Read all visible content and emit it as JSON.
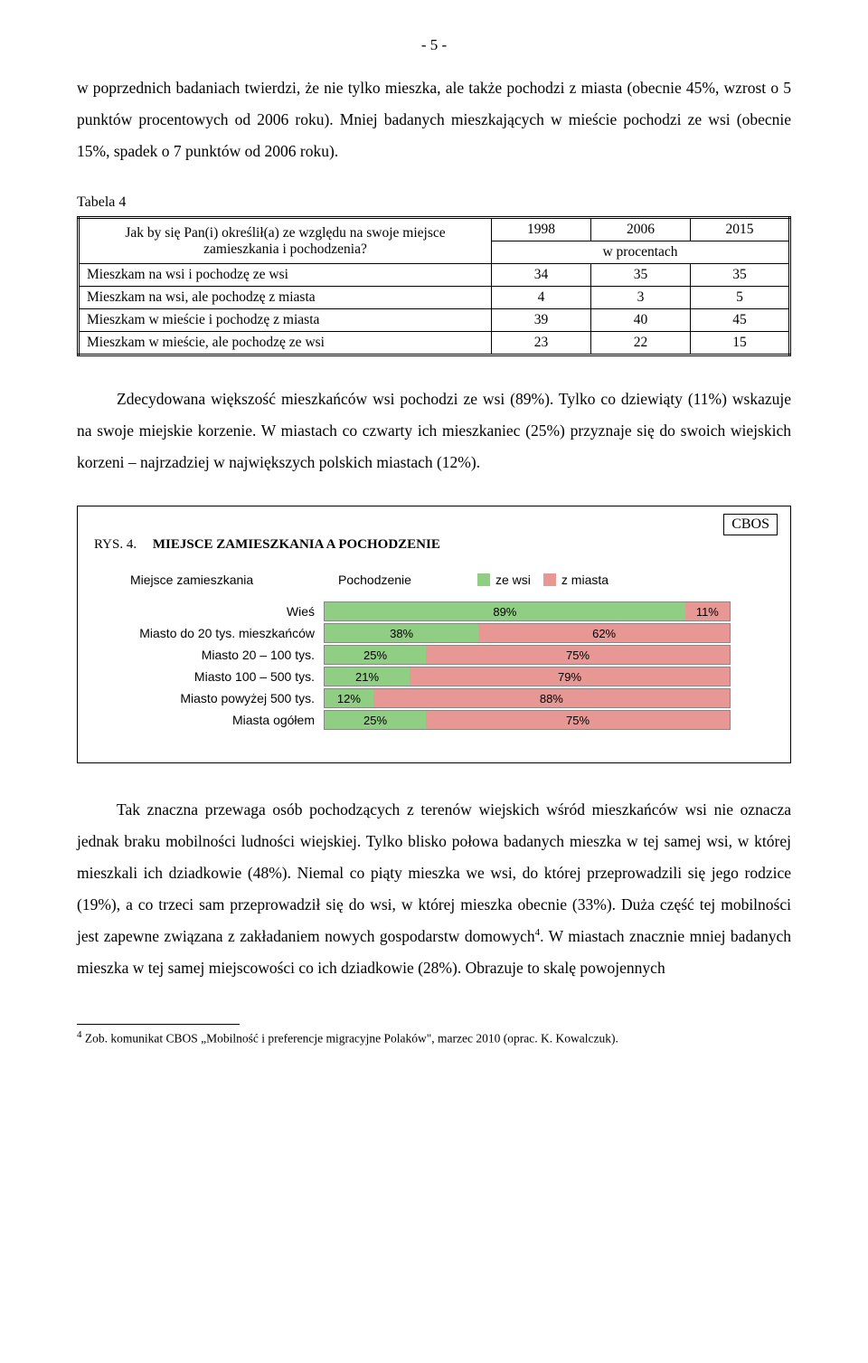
{
  "page_number": "- 5 -",
  "para1": "w poprzednich badaniach twierdzi, że nie tylko mieszka, ale także pochodzi z miasta (obecnie 45%, wzrost o 5 punktów procentowych od 2006 roku). Mniej badanych mieszkających w mieście pochodzi ze wsi (obecnie 15%, spadek o 7 punktów od 2006 roku).",
  "table_caption": "Tabela 4",
  "table": {
    "question": "Jak by się Pan(i) określił(a) ze względu na swoje miejsce zamieszkania i pochodzenia?",
    "years": [
      "1998",
      "2006",
      "2015"
    ],
    "unit": "w procentach",
    "rows": [
      {
        "label": "Mieszkam na wsi i pochodzę ze wsi",
        "v": [
          "34",
          "35",
          "35"
        ]
      },
      {
        "label": "Mieszkam na wsi, ale pochodzę z miasta",
        "v": [
          "4",
          "3",
          "5"
        ]
      },
      {
        "label": "Mieszkam w mieście i pochodzę z miasta",
        "v": [
          "39",
          "40",
          "45"
        ]
      },
      {
        "label": "Mieszkam w mieście, ale pochodzę ze wsi",
        "v": [
          "23",
          "22",
          "15"
        ]
      }
    ]
  },
  "para2": "Zdecydowana większość mieszkańców wsi pochodzi ze wsi (89%). Tylko co dziewiąty (11%) wskazuje na swoje miejskie korzenie. W miastach co czwarty ich mieszkaniec (25%) przyznaje się do swoich wiejskich korzeni – najrzadziej w największych polskich miastach (12%).",
  "chart": {
    "badge": "CBOS",
    "title_prefix": "RYS. 4.",
    "title": "MIEJSCE ZAMIESZKANIA A POCHODZENIE",
    "legend_left": "Miejsce zamieszkania",
    "legend_center": "Pochodzenie",
    "legend_green": "ze wsi",
    "legend_pink": "z miasta",
    "colors": {
      "green": "#90cf83",
      "pink": "#e89894"
    },
    "rows": [
      {
        "label": "Wieś",
        "green": 89,
        "pink": 11,
        "gl": "89%",
        "pl": "11%"
      },
      {
        "label": "Miasto do 20 tys. mieszkańców",
        "green": 38,
        "pink": 62,
        "gl": "38%",
        "pl": "62%"
      },
      {
        "label": "Miasto 20 – 100 tys.",
        "green": 25,
        "pink": 75,
        "gl": "25%",
        "pl": "75%"
      },
      {
        "label": "Miasto 100 – 500 tys.",
        "green": 21,
        "pink": 79,
        "gl": "21%",
        "pl": "79%"
      },
      {
        "label": "Miasto powyżej 500 tys.",
        "green": 12,
        "pink": 88,
        "gl": "12%",
        "pl": "88%"
      },
      {
        "label": "Miasta ogółem",
        "green": 25,
        "pink": 75,
        "gl": "25%",
        "pl": "75%"
      }
    ]
  },
  "para3a": "Tak znaczna przewaga osób pochodzących z terenów wiejskich wśród mieszkańców wsi nie oznacza jednak braku mobilności ludności wiejskiej. Tylko blisko połowa badanych mieszka w tej samej wsi, w której mieszkali ich dziadkowie (48%). Niemal co piąty mieszka we wsi, do której przeprowadzili się jego rodzice (19%), a co trzeci sam przeprowadził się do wsi, w której mieszka obecnie (33%). Duża część tej mobilności jest zapewne związana z zakładaniem nowych gospodarstw domowych",
  "fn_marker": "4",
  "para3b": ". W miastach znacznie mniej badanych mieszka w tej samej miejscowości co ich dziadkowie (28%). Obrazuje to skalę powojennych",
  "footnote_num": "4",
  "footnote_text": " Zob. komunikat CBOS „Mobilność i preferencje migracyjne Polaków\", marzec 2010 (oprac. K. Kowalczuk)."
}
